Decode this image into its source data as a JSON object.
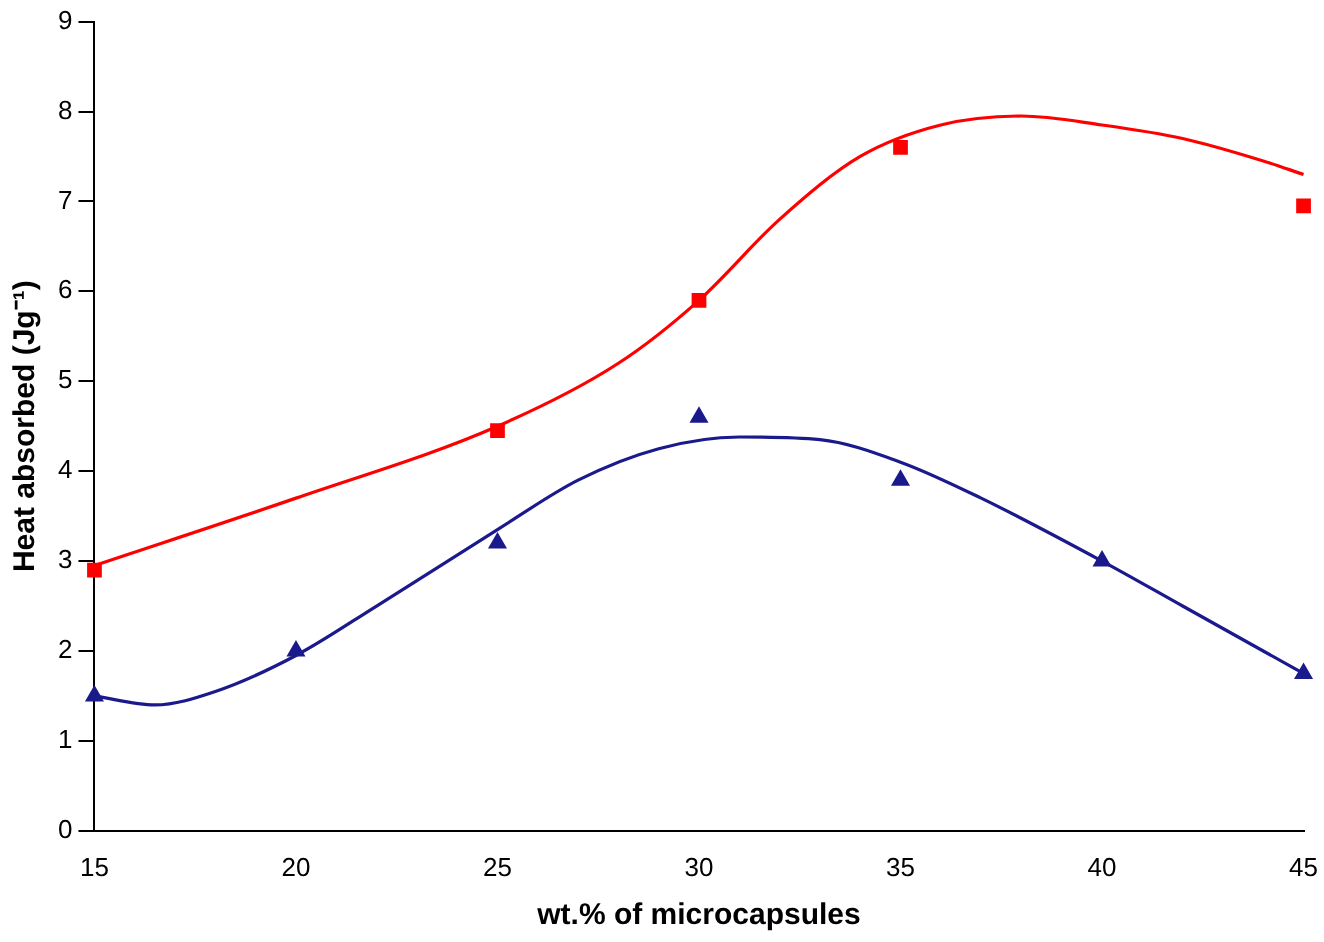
{
  "chart_data": {
    "type": "scatter",
    "xlabel": "wt.% of microcapsules",
    "ylabel": "Heat absorbed (Jg⁻¹)",
    "xlim": [
      15,
      45
    ],
    "ylim": [
      0,
      9
    ],
    "xticks": [
      15,
      20,
      25,
      30,
      35,
      40,
      45
    ],
    "yticks": [
      0,
      1,
      2,
      3,
      4,
      5,
      6,
      7,
      8,
      9
    ],
    "grid": false,
    "legend": false,
    "series": [
      {
        "type": "line",
        "color": "#1a1a8c",
        "marker": "none",
        "x": [
          15,
          16.5,
          18,
          20,
          22,
          25,
          27,
          29,
          31,
          33,
          35,
          37,
          40,
          42,
          44,
          45
        ],
        "values": [
          1.5,
          1.4,
          1.55,
          1.95,
          2.5,
          3.35,
          3.9,
          4.25,
          4.38,
          4.35,
          4.1,
          3.7,
          3.0,
          2.5,
          2.0,
          1.75
        ]
      },
      {
        "type": "line",
        "color": "#ff0000",
        "marker": "none",
        "x": [
          15,
          20,
          25,
          28,
          30,
          32,
          34,
          36,
          38,
          40,
          42,
          44,
          45
        ],
        "values": [
          2.95,
          3.7,
          4.5,
          5.2,
          5.9,
          6.8,
          7.5,
          7.85,
          7.95,
          7.85,
          7.7,
          7.45,
          7.3
        ]
      },
      {
        "type": "scatter",
        "color": "#1a1a8c",
        "marker": "triangle",
        "x": [
          15,
          20,
          25,
          30,
          35,
          40,
          45
        ],
        "values": [
          1.5,
          2.0,
          3.2,
          4.6,
          3.9,
          3.0,
          1.75
        ]
      },
      {
        "type": "scatter",
        "color": "#ff0000",
        "marker": "square",
        "x": [
          15,
          25,
          30,
          35,
          45
        ],
        "values": [
          2.9,
          4.45,
          5.9,
          7.6,
          6.95
        ]
      }
    ]
  }
}
